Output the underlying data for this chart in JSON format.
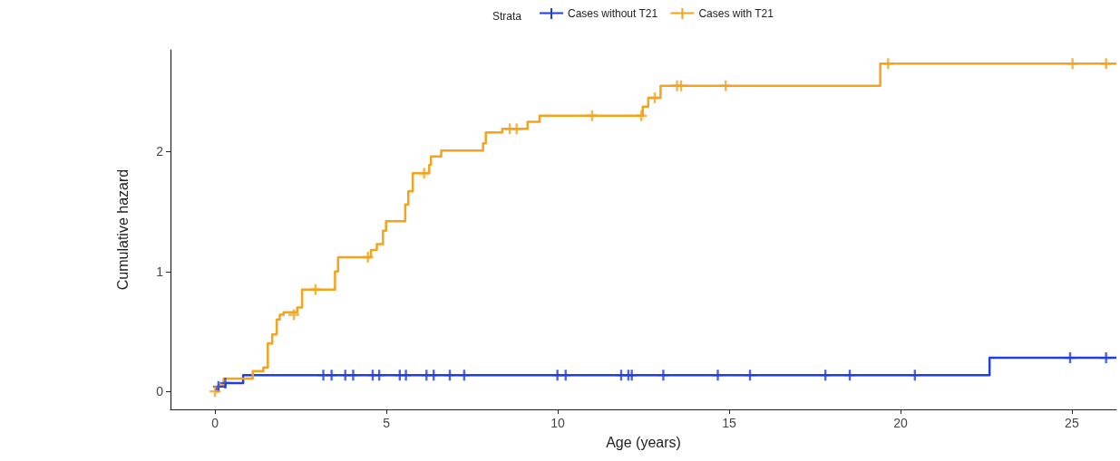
{
  "chart_data": {
    "type": "step",
    "xlabel": "Age (years)",
    "ylabel": "Cumulative hazard",
    "legend_title": "Strata",
    "legend": "top",
    "grid": false,
    "marker": "none",
    "xlim": [
      -1.3,
      26.3
    ],
    "xticks": [
      0,
      5,
      10,
      15,
      20,
      25
    ],
    "ylim": [
      -0.15,
      2.85
    ],
    "yticks": [
      0,
      1,
      2
    ],
    "series": [
      {
        "name": "Cases without T21",
        "color": "#1f3fe0",
        "x": [
          0,
          0.1,
          0.3,
          0.82,
          22.6,
          26.3
        ],
        "values": [
          0.02,
          0.04,
          0.07,
          0.136,
          0.28,
          0.28
        ]
      },
      {
        "name": "Cases with T21",
        "color": "#f5a21c",
        "x": [
          0,
          0.1,
          0.25,
          1.1,
          1.41,
          1.54,
          1.67,
          1.8,
          1.89,
          2.0,
          2.4,
          2.54,
          3.5,
          3.59,
          4.55,
          4.72,
          4.9,
          4.99,
          5.55,
          5.64,
          5.77,
          6.25,
          6.3,
          6.6,
          7.82,
          7.9,
          8.38,
          9.12,
          9.47,
          12.48,
          12.64,
          13.0,
          19.41,
          26.3
        ],
        "values": [
          0,
          0.05,
          0.106,
          0.17,
          0.2,
          0.4,
          0.475,
          0.6,
          0.64,
          0.66,
          0.7,
          0.85,
          1.0,
          1.12,
          1.18,
          1.23,
          1.34,
          1.42,
          1.56,
          1.67,
          1.82,
          1.89,
          1.96,
          2.01,
          2.07,
          2.16,
          2.19,
          2.25,
          2.3,
          2.375,
          2.45,
          2.55,
          2.735,
          2.735
        ]
      },
      {
        "type": "scatter",
        "marker": "cross",
        "color": "#1f3fe0",
        "x": [
          0.1,
          0.3,
          3.16,
          3.4,
          3.8,
          4.03,
          4.6,
          4.79,
          5.39,
          5.57,
          6.17,
          6.38,
          6.85,
          7.27,
          9.99,
          10.23,
          11.85,
          12.06,
          12.16,
          13.08,
          14.67,
          15.61,
          17.81,
          18.52,
          20.42,
          24.95,
          26.0
        ],
        "values": [
          0.04,
          0.07,
          0.136,
          0.136,
          0.136,
          0.136,
          0.136,
          0.136,
          0.136,
          0.136,
          0.136,
          0.136,
          0.136,
          0.136,
          0.136,
          0.136,
          0.136,
          0.136,
          0.136,
          0.136,
          0.136,
          0.136,
          0.136,
          0.136,
          0.136,
          0.28,
          0.28
        ]
      },
      {
        "type": "scatter",
        "marker": "cross",
        "color": "#f5a21c",
        "x": [
          0,
          2.3,
          2.93,
          4.46,
          6.1,
          8.6,
          8.8,
          11.0,
          12.44,
          12.83,
          13.48,
          13.6,
          14.9,
          19.64,
          25.02,
          26.0
        ],
        "values": [
          0,
          0.64,
          0.85,
          1.12,
          1.82,
          2.19,
          2.19,
          2.3,
          2.3,
          2.45,
          2.55,
          2.55,
          2.55,
          2.735,
          2.735,
          2.735
        ]
      }
    ]
  }
}
